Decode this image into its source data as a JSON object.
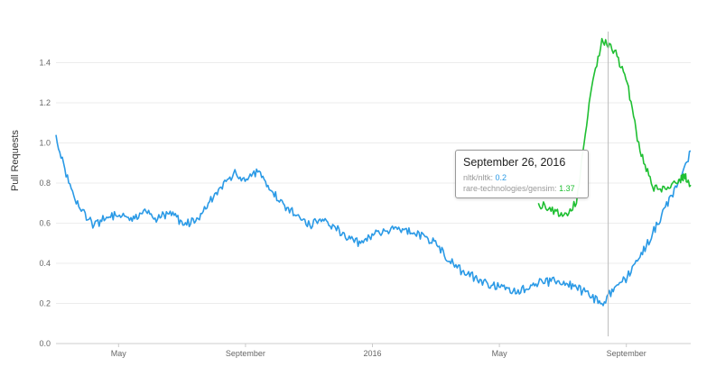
{
  "chart_data": {
    "type": "line",
    "ylabel": "Pull Requests",
    "xlabel": "",
    "title": "",
    "ylim": [
      0,
      1.6
    ],
    "y_ticks": [
      "0.0",
      "0.2",
      "0.4",
      "0.6",
      "0.8",
      "1.0",
      "1.2",
      "1.4"
    ],
    "x_ticks": [
      "May",
      "September",
      "2016",
      "May",
      "September"
    ],
    "grid": true,
    "legend": "none",
    "series": [
      {
        "name": "nltk/nltk",
        "color": "#2b9ae6",
        "x": [
          0,
          2,
          4,
          6,
          8,
          10,
          12,
          14,
          16,
          18,
          20,
          22,
          24,
          26,
          28,
          30,
          32,
          34,
          36,
          38,
          40,
          42,
          44,
          46,
          48,
          50,
          52,
          54,
          56,
          58,
          60,
          62,
          64,
          66,
          68,
          70,
          72,
          74,
          76,
          78,
          80,
          82,
          84,
          86,
          88,
          90,
          92,
          94,
          96,
          98,
          100
        ],
        "values": [
          1.04,
          0.8,
          0.66,
          0.59,
          0.63,
          0.64,
          0.61,
          0.67,
          0.62,
          0.66,
          0.59,
          0.61,
          0.7,
          0.78,
          0.85,
          0.82,
          0.86,
          0.76,
          0.69,
          0.64,
          0.59,
          0.62,
          0.58,
          0.52,
          0.5,
          0.54,
          0.56,
          0.58,
          0.55,
          0.54,
          0.49,
          0.41,
          0.36,
          0.33,
          0.3,
          0.28,
          0.26,
          0.27,
          0.3,
          0.31,
          0.31,
          0.28,
          0.24,
          0.2,
          0.28,
          0.33,
          0.43,
          0.55,
          0.68,
          0.8,
          0.96
        ]
      },
      {
        "name": "rare-technologies/gensim",
        "color": "#1fbf32",
        "x": [
          76,
          78,
          80,
          82,
          84,
          86,
          88,
          90,
          92,
          94,
          96,
          98,
          99,
          100
        ],
        "values": [
          0.7,
          0.66,
          0.64,
          0.7,
          1.2,
          1.52,
          1.46,
          1.3,
          0.96,
          0.78,
          0.77,
          0.8,
          0.84,
          0.79
        ]
      }
    ]
  },
  "tooltip": {
    "title": "September 26, 2016",
    "nltk_label": "nltk/nltk: ",
    "nltk_value": "0.2",
    "gensim_label": "rare-technologies/gensim: ",
    "gensim_value": "1.37"
  }
}
